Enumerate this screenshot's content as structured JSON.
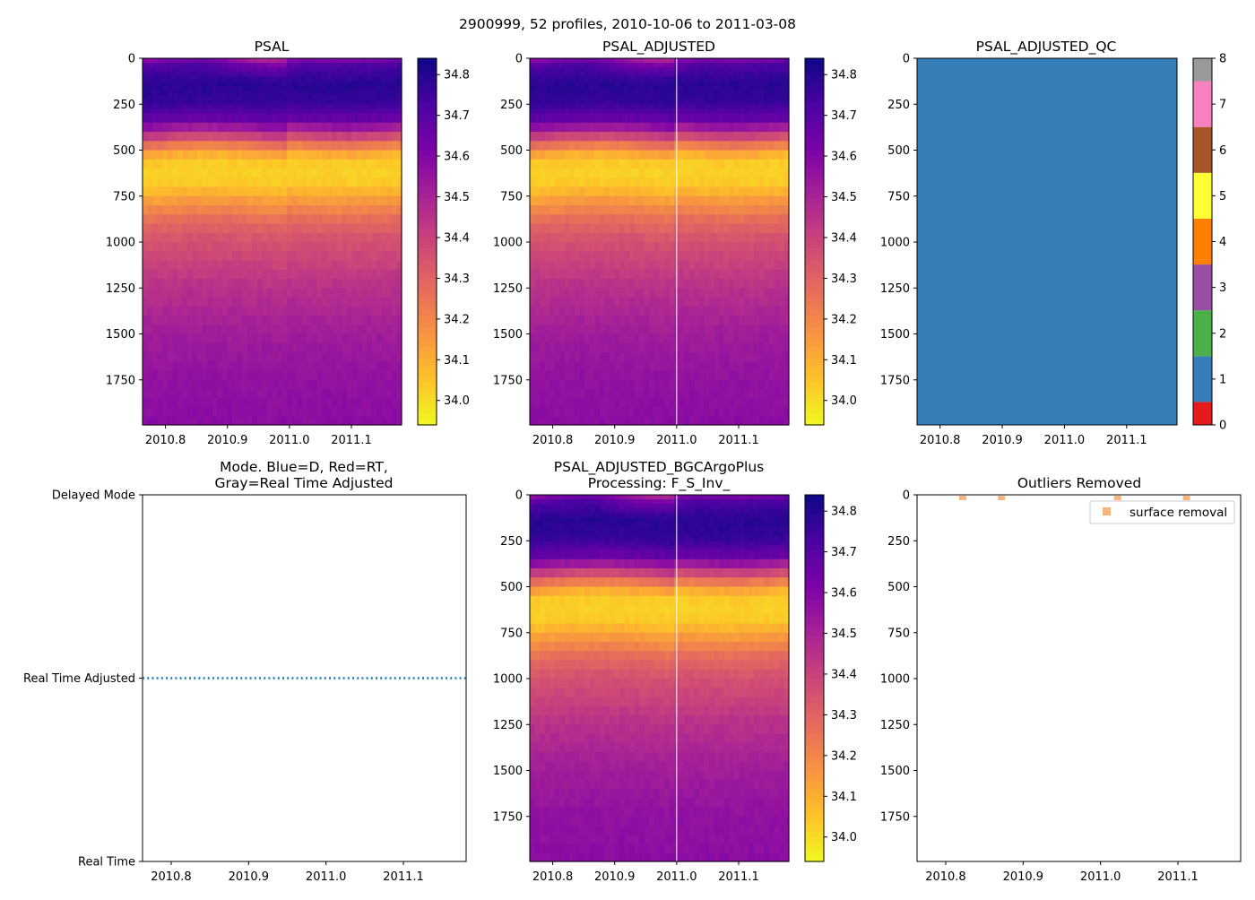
{
  "figure": {
    "suptitle": "2900999, 52 profiles, 2010-10-06 to 2011-03-08",
    "colors": {
      "background": "#ffffff",
      "axis": "#000000",
      "mode_line": "#1f77b4",
      "outlier_marker": "#f7a766",
      "divider": "#ffffff"
    }
  },
  "chart_data": [
    {
      "id": "psal",
      "type": "heatmap",
      "title": "PSAL",
      "xlabel": "",
      "ylabel": "",
      "xlim": [
        2010.763,
        2011.181
      ],
      "ylim": [
        1995,
        0
      ],
      "xticks": [
        "2010.8",
        "2010.9",
        "2011.0",
        "2011.1"
      ],
      "yticks": [
        "0",
        "250",
        "500",
        "750",
        "1000",
        "1250",
        "1500",
        "1750"
      ],
      "n_profiles": 52,
      "colormap": "plasma_r",
      "clim": [
        33.94,
        34.84
      ],
      "colorbar_ticks": [
        "34.0",
        "34.1",
        "34.2",
        "34.3",
        "34.4",
        "34.5",
        "34.6",
        "34.7",
        "34.8"
      ],
      "depth_profile": [
        [
          0,
          34.55
        ],
        [
          50,
          34.72
        ],
        [
          150,
          34.79
        ],
        [
          250,
          34.77
        ],
        [
          350,
          34.66
        ],
        [
          420,
          34.45
        ],
        [
          500,
          34.2
        ],
        [
          560,
          34.05
        ],
        [
          620,
          34.02
        ],
        [
          700,
          34.04
        ],
        [
          780,
          34.14
        ],
        [
          900,
          34.28
        ],
        [
          1000,
          34.35
        ],
        [
          1250,
          34.45
        ],
        [
          1500,
          34.52
        ],
        [
          1750,
          34.56
        ],
        [
          2000,
          34.58
        ]
      ],
      "vertical_line_x": null
    },
    {
      "id": "psal_adjusted",
      "type": "heatmap",
      "title": "PSAL_ADJUSTED",
      "xlabel": "",
      "ylabel": "",
      "xlim": [
        2010.763,
        2011.181
      ],
      "ylim": [
        1995,
        0
      ],
      "xticks": [
        "2010.8",
        "2010.9",
        "2011.0",
        "2011.1"
      ],
      "yticks": [
        "0",
        "250",
        "500",
        "750",
        "1000",
        "1250",
        "1500",
        "1750"
      ],
      "n_profiles": 52,
      "colormap": "plasma_r",
      "clim": [
        33.94,
        34.84
      ],
      "colorbar_ticks": [
        "34.0",
        "34.1",
        "34.2",
        "34.3",
        "34.4",
        "34.5",
        "34.6",
        "34.7",
        "34.8"
      ],
      "depth_profile": [
        [
          0,
          34.55
        ],
        [
          50,
          34.72
        ],
        [
          150,
          34.79
        ],
        [
          250,
          34.77
        ],
        [
          350,
          34.66
        ],
        [
          420,
          34.45
        ],
        [
          500,
          34.2
        ],
        [
          560,
          34.05
        ],
        [
          620,
          34.02
        ],
        [
          700,
          34.04
        ],
        [
          780,
          34.14
        ],
        [
          900,
          34.28
        ],
        [
          1000,
          34.35
        ],
        [
          1250,
          34.45
        ],
        [
          1500,
          34.52
        ],
        [
          1750,
          34.56
        ],
        [
          2000,
          34.58
        ]
      ],
      "vertical_line_x": 2011.0
    },
    {
      "id": "psal_adjusted_qc",
      "type": "heatmap",
      "title": "PSAL_ADJUSTED_QC",
      "xlabel": "",
      "ylabel": "",
      "xlim": [
        2010.763,
        2011.181
      ],
      "ylim": [
        1995,
        0
      ],
      "xticks": [
        "2010.8",
        "2010.9",
        "2011.0",
        "2011.1"
      ],
      "yticks": [
        "0",
        "250",
        "500",
        "750",
        "1000",
        "1250",
        "1500",
        "1750"
      ],
      "qc_value": 1,
      "qc_fill": "#377eb8",
      "colorbar_ticks": [
        "0",
        "1",
        "2",
        "3",
        "4",
        "5",
        "6",
        "7",
        "8"
      ],
      "qc_colors": [
        "#e41a1c",
        "#377eb8",
        "#4daf4a",
        "#984ea3",
        "#ff7f00",
        "#ffff33",
        "#a65628",
        "#f781bf",
        "#999999"
      ]
    },
    {
      "id": "mode",
      "type": "line",
      "title": "Mode. Blue=D, Red=RT,",
      "title_line2": "Gray=Real Time Adjusted",
      "xlim": [
        2010.763,
        2011.181
      ],
      "ylim": [
        0,
        2
      ],
      "xticks": [
        "2010.8",
        "2010.9",
        "2011.0",
        "2011.1"
      ],
      "yticks": [
        "Delayed Mode",
        "Real Time Adjusted",
        "Real Time"
      ],
      "series": [
        {
          "name": "mode",
          "style": "dotted",
          "x": [
            2010.763,
            2011.181
          ],
          "y": [
            1,
            1
          ]
        }
      ]
    },
    {
      "id": "psal_bgcargoplus",
      "type": "heatmap",
      "title": "PSAL_ADJUSTED_BGCArgoPlus",
      "title_line2": "Processing: F_S_Inv_",
      "xlabel": "",
      "ylabel": "",
      "xlim": [
        2010.763,
        2011.181
      ],
      "ylim": [
        1995,
        0
      ],
      "xticks": [
        "2010.8",
        "2010.9",
        "2011.0",
        "2011.1"
      ],
      "yticks": [
        "0",
        "250",
        "500",
        "750",
        "1000",
        "1250",
        "1500",
        "1750"
      ],
      "n_profiles": 52,
      "colormap": "plasma_r",
      "clim": [
        33.94,
        34.84
      ],
      "colorbar_ticks": [
        "34.0",
        "34.1",
        "34.2",
        "34.3",
        "34.4",
        "34.5",
        "34.6",
        "34.7",
        "34.8"
      ],
      "depth_profile": [
        [
          0,
          34.55
        ],
        [
          50,
          34.72
        ],
        [
          150,
          34.79
        ],
        [
          250,
          34.77
        ],
        [
          350,
          34.66
        ],
        [
          420,
          34.45
        ],
        [
          500,
          34.2
        ],
        [
          560,
          34.05
        ],
        [
          620,
          34.02
        ],
        [
          700,
          34.04
        ],
        [
          780,
          34.14
        ],
        [
          900,
          34.28
        ],
        [
          1000,
          34.35
        ],
        [
          1250,
          34.45
        ],
        [
          1500,
          34.52
        ],
        [
          1750,
          34.56
        ],
        [
          2000,
          34.58
        ]
      ],
      "vertical_line_x": 2011.0
    },
    {
      "id": "outliers",
      "type": "scatter",
      "title": "Outliers Removed",
      "xlim": [
        2010.763,
        2011.181
      ],
      "ylim": [
        1995,
        0
      ],
      "xticks": [
        "2010.8",
        "2010.9",
        "2011.0",
        "2011.1"
      ],
      "yticks": [
        "0",
        "250",
        "500",
        "750",
        "1000",
        "1250",
        "1500",
        "1750"
      ],
      "legend_position": "top-right",
      "series": [
        {
          "name": "surface removal",
          "x": [
            2010.822,
            2010.872,
            2011.022,
            2011.111
          ],
          "y": [
            5,
            5,
            5,
            5
          ]
        }
      ]
    }
  ]
}
